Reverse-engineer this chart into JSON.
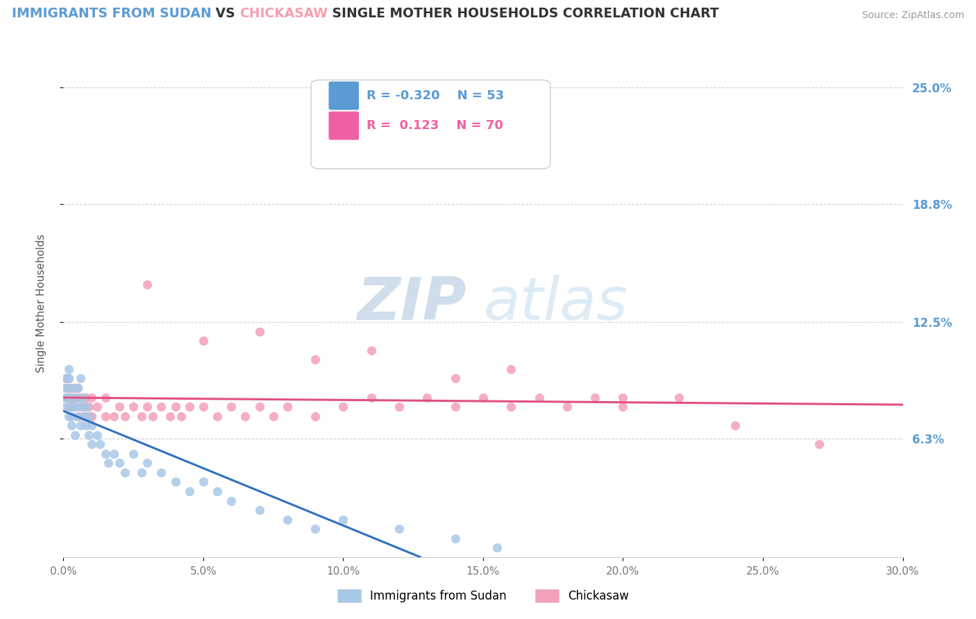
{
  "title_parts": [
    {
      "text": "IMMIGRANTS FROM SUDAN",
      "color": "#5b9bd5"
    },
    {
      "text": " VS ",
      "color": "#333333"
    },
    {
      "text": "CHICKASAW",
      "color": "#f4a0b0"
    },
    {
      "text": " SINGLE MOTHER HOUSEHOLDS CORRELATION CHART",
      "color": "#333333"
    }
  ],
  "source_text": "Source: ZipAtlas.com",
  "source_color": "#999999",
  "ylabel": "Single Mother Households",
  "ylabel_color": "#555555",
  "xlim": [
    0.0,
    0.3
  ],
  "ylim": [
    -0.01,
    0.27
  ],
  "plot_ylim": [
    0.0,
    0.27
  ],
  "xtick_values": [
    0.0,
    0.05,
    0.1,
    0.15,
    0.2,
    0.25,
    0.3
  ],
  "ytick_values": [
    0.063,
    0.125,
    0.188,
    0.25
  ],
  "ytick_labels": [
    "6.3%",
    "12.5%",
    "18.8%",
    "25.0%"
  ],
  "ytick_color": "#5b9bd5",
  "grid_color": "#d0d0d0",
  "background_color": "#ffffff",
  "watermark_color": "#d8e8f5",
  "legend_R1": "-0.320",
  "legend_N1": "53",
  "legend_R2": "0.123",
  "legend_N2": "70",
  "legend_color1": "#5b9bd5",
  "legend_color2": "#f060a0",
  "series1_color": "#a8c8e8",
  "series2_color": "#f4a0b8",
  "trendline1_color": "#3070c0",
  "trendline2_color": "#e05080",
  "sudan_x": [
    0.001,
    0.001,
    0.001,
    0.001,
    0.002,
    0.002,
    0.002,
    0.002,
    0.002,
    0.003,
    0.003,
    0.003,
    0.003,
    0.004,
    0.004,
    0.004,
    0.005,
    0.005,
    0.005,
    0.006,
    0.006,
    0.006,
    0.007,
    0.007,
    0.008,
    0.008,
    0.009,
    0.009,
    0.01,
    0.01,
    0.012,
    0.013,
    0.015,
    0.016,
    0.018,
    0.02,
    0.022,
    0.025,
    0.028,
    0.03,
    0.035,
    0.04,
    0.045,
    0.05,
    0.055,
    0.06,
    0.07,
    0.08,
    0.09,
    0.1,
    0.12,
    0.14,
    0.155
  ],
  "sudan_y": [
    0.085,
    0.09,
    0.095,
    0.08,
    0.085,
    0.09,
    0.075,
    0.095,
    0.1,
    0.08,
    0.085,
    0.07,
    0.075,
    0.08,
    0.09,
    0.065,
    0.075,
    0.085,
    0.09,
    0.07,
    0.08,
    0.095,
    0.075,
    0.085,
    0.07,
    0.08,
    0.065,
    0.075,
    0.06,
    0.07,
    0.065,
    0.06,
    0.055,
    0.05,
    0.055,
    0.05,
    0.045,
    0.055,
    0.045,
    0.05,
    0.045,
    0.04,
    0.035,
    0.04,
    0.035,
    0.03,
    0.025,
    0.02,
    0.015,
    0.02,
    0.015,
    0.01,
    0.005
  ],
  "chickasaw_x": [
    0.001,
    0.001,
    0.001,
    0.002,
    0.002,
    0.002,
    0.002,
    0.003,
    0.003,
    0.003,
    0.004,
    0.004,
    0.004,
    0.005,
    0.005,
    0.005,
    0.006,
    0.006,
    0.007,
    0.007,
    0.008,
    0.008,
    0.009,
    0.01,
    0.01,
    0.012,
    0.015,
    0.015,
    0.018,
    0.02,
    0.022,
    0.025,
    0.028,
    0.03,
    0.032,
    0.035,
    0.038,
    0.04,
    0.042,
    0.045,
    0.05,
    0.055,
    0.06,
    0.065,
    0.07,
    0.075,
    0.08,
    0.09,
    0.1,
    0.11,
    0.12,
    0.13,
    0.14,
    0.15,
    0.16,
    0.17,
    0.18,
    0.19,
    0.2,
    0.22,
    0.03,
    0.05,
    0.07,
    0.09,
    0.11,
    0.14,
    0.16,
    0.2,
    0.24,
    0.27
  ],
  "chickasaw_y": [
    0.085,
    0.09,
    0.095,
    0.08,
    0.085,
    0.09,
    0.095,
    0.08,
    0.085,
    0.09,
    0.08,
    0.085,
    0.09,
    0.075,
    0.085,
    0.09,
    0.08,
    0.085,
    0.075,
    0.08,
    0.075,
    0.085,
    0.08,
    0.075,
    0.085,
    0.08,
    0.075,
    0.085,
    0.075,
    0.08,
    0.075,
    0.08,
    0.075,
    0.08,
    0.075,
    0.08,
    0.075,
    0.08,
    0.075,
    0.08,
    0.08,
    0.075,
    0.08,
    0.075,
    0.08,
    0.075,
    0.08,
    0.075,
    0.08,
    0.085,
    0.08,
    0.085,
    0.08,
    0.085,
    0.08,
    0.085,
    0.08,
    0.085,
    0.08,
    0.085,
    0.145,
    0.115,
    0.12,
    0.105,
    0.11,
    0.095,
    0.1,
    0.085,
    0.07,
    0.06
  ]
}
